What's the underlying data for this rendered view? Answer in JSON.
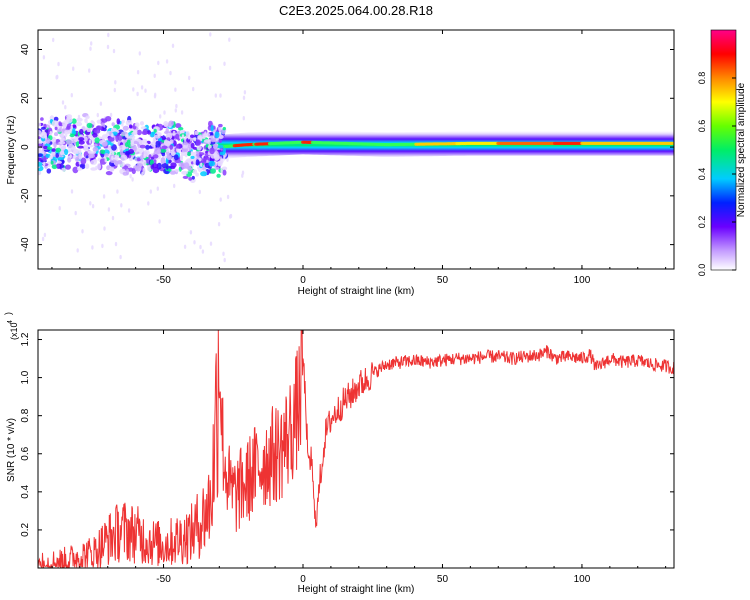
{
  "figure": {
    "title": "C2E3.2025.064.00.28.R18"
  },
  "chart_data": [
    {
      "type": "heatmap",
      "title": "C2E3.2025.064.00.28.R18",
      "xlabel": "Height of straight line (km)",
      "ylabel": "Frequency (Hz)",
      "xlim": [
        -95,
        133
      ],
      "ylim": [
        -50,
        48
      ],
      "x_ticks": [
        -50,
        0,
        50,
        100
      ],
      "y_ticks": [
        -40,
        -20,
        0,
        20,
        40
      ],
      "colorbar": {
        "label": "Normalized spectral amplitude",
        "range": [
          0,
          1
        ],
        "ticks": [
          "0.0",
          "0.2",
          "0.4",
          "0.6",
          "0.8"
        ],
        "colormap": "rainbow (white-violet-blue-cyan-green-yellow-red-magenta)"
      },
      "ridge": {
        "description": "narrow high-amplitude band near 0-2 Hz for heights above about -30 km; broad scattered amplitude below about -30 km",
        "center_freq_points": [
          [
            -95,
            0
          ],
          [
            -80,
            2
          ],
          [
            -60,
            0
          ],
          [
            -40,
            -2
          ],
          [
            -30,
            0
          ],
          [
            -20,
            1
          ],
          [
            0,
            2
          ],
          [
            30,
            1
          ],
          [
            60,
            1.5
          ],
          [
            100,
            1.5
          ],
          [
            133,
            1.5
          ]
        ]
      }
    },
    {
      "type": "line",
      "xlabel": "Height of straight line (km)",
      "ylabel": "SNR (10 * v/v)",
      "y_multiplier_label": "(x10",
      "y_multiplier_exp": "4",
      "xlim": [
        -95,
        133
      ],
      "ylim": [
        0,
        1.25
      ],
      "x_ticks": [
        -50,
        0,
        50,
        100
      ],
      "y_ticks": [
        "0.2",
        "0.4",
        "0.6",
        "0.8",
        "1.0",
        "1.2"
      ],
      "color": "#ee3333",
      "series": [
        {
          "x": [
            -95,
            -85,
            -75,
            -70,
            -65,
            -60,
            -55,
            -50,
            -45,
            -40,
            -38,
            -35,
            -33,
            -32,
            -31,
            -30,
            -29,
            -28,
            -26,
            -24,
            -22,
            -20,
            -18,
            -15,
            -12,
            -10,
            -8,
            -5,
            -3,
            -1,
            0,
            1,
            2,
            3,
            4,
            5,
            6,
            8,
            10,
            12,
            15,
            18,
            20,
            22,
            25,
            28,
            30,
            35,
            40,
            45,
            50,
            55,
            60,
            65,
            70,
            75,
            80,
            85,
            88,
            90,
            95,
            100,
            103,
            105,
            110,
            115,
            120,
            125,
            130,
            133
          ],
          "y": [
            0.02,
            0.04,
            0.08,
            0.15,
            0.2,
            0.18,
            0.14,
            0.12,
            0.15,
            0.18,
            0.22,
            0.28,
            0.35,
            0.55,
            0.85,
            1.2,
            0.7,
            0.55,
            0.4,
            0.38,
            0.42,
            0.45,
            0.5,
            0.55,
            0.58,
            0.6,
            0.62,
            0.7,
            0.78,
            0.9,
            1.12,
            0.85,
            0.5,
            0.6,
            0.3,
            0.28,
            0.45,
            0.7,
            0.78,
            0.82,
            0.88,
            0.92,
            0.96,
            0.98,
            1.02,
            1.05,
            1.07,
            1.08,
            1.09,
            1.08,
            1.09,
            1.1,
            1.1,
            1.11,
            1.11,
            1.1,
            1.11,
            1.12,
            1.14,
            1.1,
            1.11,
            1.1,
            1.12,
            1.05,
            1.1,
            1.08,
            1.09,
            1.07,
            1.06,
            1.05
          ]
        }
      ]
    }
  ]
}
